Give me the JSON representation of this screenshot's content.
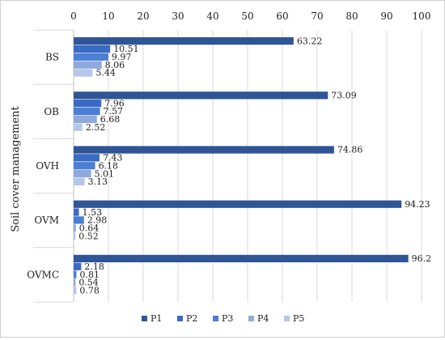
{
  "chart_data": {
    "type": "bar",
    "orientation": "horizontal",
    "title": "",
    "xlabel": "",
    "ylabel": "Soil cover management",
    "xlim": [
      0,
      100
    ],
    "xticks": [
      "0",
      "10",
      "20",
      "30",
      "40",
      "50",
      "60",
      "70",
      "80",
      "90",
      "100"
    ],
    "x_axis_position": "top",
    "grid": true,
    "legend_position": "bottom",
    "categories": [
      "BS",
      "OB",
      "OVH",
      "OVM",
      "OVMC"
    ],
    "series": [
      {
        "name": "P1",
        "color": "#2f5597",
        "values": [
          63.22,
          73.09,
          74.86,
          94.23,
          96.2
        ],
        "labels": [
          "63.22",
          "73.09",
          "74.86",
          "94.23",
          "96.2"
        ]
      },
      {
        "name": "P2",
        "color": "#3a6bc4",
        "values": [
          10.51,
          7.96,
          7.43,
          1.53,
          2.18
        ],
        "labels": [
          "10.51",
          "7.96",
          "7.43",
          "1.53",
          "2.18"
        ]
      },
      {
        "name": "P3",
        "color": "#4a7fd4",
        "values": [
          9.97,
          7.57,
          6.18,
          2.98,
          0.81
        ],
        "labels": [
          "9.97",
          "7.57",
          "6.18",
          "2.98",
          "0.81"
        ]
      },
      {
        "name": "P4",
        "color": "#8ea9db",
        "values": [
          8.06,
          6.68,
          5.01,
          0.64,
          0.54
        ],
        "labels": [
          "8.06",
          "6.68",
          "5.01",
          "0.64",
          "0.54"
        ]
      },
      {
        "name": "P5",
        "color": "#b4c7e7",
        "values": [
          5.44,
          2.52,
          3.13,
          0.52,
          0.78
        ],
        "labels": [
          "5.44",
          "2.52",
          "3.13",
          "0.52",
          "0.78"
        ]
      }
    ]
  }
}
